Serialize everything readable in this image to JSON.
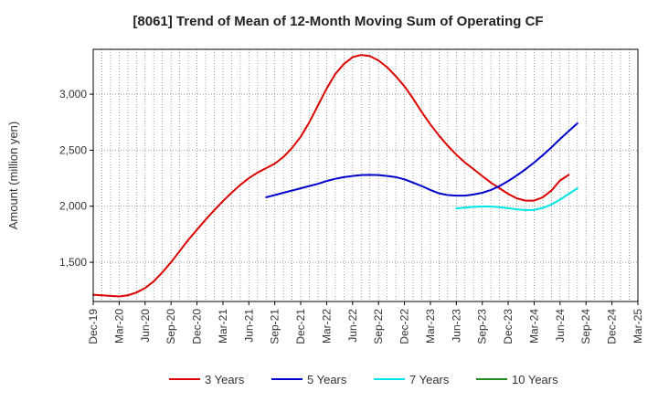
{
  "chart_data": {
    "type": "line",
    "title": "[8061]  Trend of Mean of 12-Month Moving Sum of Operating CF",
    "xlabel": "",
    "ylabel": "Amount (million yen)",
    "ylim": [
      1150,
      3400
    ],
    "yticks": [
      1500,
      2000,
      2500,
      3000
    ],
    "ytick_labels": [
      "1,500",
      "2,000",
      "2,500",
      "3,000"
    ],
    "x_categories": [
      "Dec-19",
      "Mar-20",
      "Jun-20",
      "Sep-20",
      "Dec-20",
      "Mar-21",
      "Jun-21",
      "Sep-21",
      "Dec-21",
      "Mar-22",
      "Jun-22",
      "Sep-22",
      "Dec-22",
      "Mar-23",
      "Jun-23",
      "Sep-23",
      "Dec-23",
      "Mar-24",
      "Jun-24",
      "Sep-24",
      "Dec-24",
      "Mar-25"
    ],
    "grid": true,
    "legend_position": "bottom",
    "series": [
      {
        "name": "3 Years",
        "color": "#dd0000",
        "start_index": 0,
        "values": [
          1210,
          1205,
          1200,
          1195,
          1205,
          1230,
          1270,
          1330,
          1410,
          1500,
          1600,
          1700,
          1790,
          1880,
          1965,
          2045,
          2120,
          2190,
          2250,
          2300,
          2340,
          2380,
          2440,
          2520,
          2620,
          2750,
          2900,
          3050,
          3180,
          3270,
          3330,
          3350,
          3340,
          3300,
          3240,
          3160,
          3070,
          2960,
          2840,
          2730,
          2630,
          2540,
          2460,
          2390,
          2330,
          2270,
          2210,
          2160,
          2110,
          2070,
          2050,
          2050,
          2080,
          2140,
          2230,
          2280
        ]
      },
      {
        "name": "5 Years",
        "color": "#0000cc",
        "start_index": 20,
        "values": [
          2080,
          2100,
          2120,
          2140,
          2160,
          2180,
          2200,
          2225,
          2245,
          2260,
          2270,
          2278,
          2280,
          2278,
          2270,
          2260,
          2240,
          2210,
          2180,
          2145,
          2115,
          2100,
          2095,
          2095,
          2105,
          2120,
          2145,
          2180,
          2225,
          2275,
          2330,
          2390,
          2455,
          2525,
          2600,
          2670,
          2740
        ]
      },
      {
        "name": "7 Years",
        "color": "#00e5e5",
        "start_index": 42,
        "values": [
          1980,
          1988,
          1995,
          1998,
          1998,
          1992,
          1983,
          1972,
          1965,
          1967,
          1985,
          2015,
          2060,
          2110,
          2160
        ]
      },
      {
        "name": "10 Years",
        "color": "#228b22",
        "start_index": 0,
        "values": []
      }
    ]
  }
}
